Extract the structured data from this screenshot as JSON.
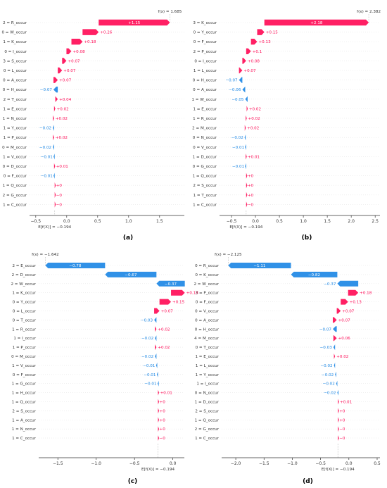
{
  "figure": {
    "colors": {
      "positive": "#ff0d57",
      "negative": "#1e88e5",
      "text": "#333333",
      "grid": "#e6e6e6"
    }
  },
  "chart_data": [
    {
      "type": "waterfall",
      "caption": "(a)",
      "fx_label": "f(x) = 1.685",
      "ex_label": "E[f(X)] = −0.194",
      "base": -0.194,
      "xlim": [
        -0.6,
        1.9
      ],
      "xticks": [
        -0.5,
        0.0,
        0.5,
        1.0,
        1.5
      ],
      "tick_labels": [
        "−0.5",
        "0.0",
        "0.5",
        "1.0",
        "1.5"
      ],
      "features": [
        {
          "label": "2 = R_occur",
          "value": 1.15
        },
        {
          "label": "0 = W_occur",
          "value": 0.26
        },
        {
          "label": "1 = K_occur",
          "value": 0.18
        },
        {
          "label": "0 = I_occur",
          "value": 0.08
        },
        {
          "label": "3 = S_occur",
          "value": 0.07
        },
        {
          "label": "0 = L_occur",
          "value": 0.07
        },
        {
          "label": "0 = A_occur",
          "value": 0.07
        },
        {
          "label": "0 = H_occur",
          "value": -0.07
        },
        {
          "label": "2 = T_occur",
          "value": 0.04
        },
        {
          "label": "1 = E_occur",
          "value": 0.02
        },
        {
          "label": "1 = N_occur",
          "value": 0.02
        },
        {
          "label": "1 = Y_occur",
          "value": -0.02
        },
        {
          "label": "1 = P_occur",
          "value": 0.02
        },
        {
          "label": "0 = M_occur",
          "value": -0.02
        },
        {
          "label": "1 = V_occur",
          "value": -0.01
        },
        {
          "label": "0 = D_occur",
          "value": 0.01
        },
        {
          "label": "0 = F_occur",
          "value": -0.01
        },
        {
          "label": "1 = Q_occur",
          "value": 0.0
        },
        {
          "label": "2 = G_occur",
          "value": -0.0
        },
        {
          "label": "1 = C_occur",
          "value": -0.0
        }
      ],
      "value_labels": [
        "+1.15",
        "+0.26",
        "+0.18",
        "+0.08",
        "+0.07",
        "+0.07",
        "+0.07",
        "−0.07",
        "+0.04",
        "+0.02",
        "+0.02",
        "−0.02",
        "+0.02",
        "−0.02",
        "−0.01",
        "+0.01",
        "−0.01",
        "+0",
        "−0",
        "−0"
      ]
    },
    {
      "type": "waterfall",
      "caption": "(b)",
      "fx_label": "f(x) = 2.382",
      "ex_label": "E[f(X)] = −0.194",
      "base": -0.194,
      "xlim": [
        -0.75,
        2.6
      ],
      "xticks": [
        -0.5,
        0.0,
        0.5,
        1.0,
        1.5,
        2.0,
        2.5
      ],
      "tick_labels": [
        "−0.5",
        "0.0",
        "0.5",
        "1.0",
        "1.5",
        "2.0",
        "2.5"
      ],
      "features": [
        {
          "label": "3 = K_occur",
          "value": 2.18
        },
        {
          "label": "0 = Y_occur",
          "value": 0.15
        },
        {
          "label": "0 = F_occur",
          "value": 0.13
        },
        {
          "label": "2 = P_occur",
          "value": 0.1
        },
        {
          "label": "0 = I_occur",
          "value": 0.08
        },
        {
          "label": "1 = L_occur",
          "value": 0.07
        },
        {
          "label": "0 = H_occur",
          "value": -0.07
        },
        {
          "label": "0 = A_occur",
          "value": -0.06
        },
        {
          "label": "1 = W_occur",
          "value": -0.05
        },
        {
          "label": "1 = E_occur",
          "value": 0.02
        },
        {
          "label": "1 = R_occur",
          "value": 0.02
        },
        {
          "label": "2 = M_occur",
          "value": 0.02
        },
        {
          "label": "0 = N_occur",
          "value": -0.02
        },
        {
          "label": "0 = V_occur",
          "value": -0.01
        },
        {
          "label": "1 = D_occur",
          "value": 0.01
        },
        {
          "label": "0 = G_occur",
          "value": -0.01
        },
        {
          "label": "1 = Q_occur",
          "value": 0.0
        },
        {
          "label": "2 = S_occur",
          "value": 0.0
        },
        {
          "label": "1 = T_occur",
          "value": 0.0
        },
        {
          "label": "1 = C_occur",
          "value": -0.0
        }
      ],
      "value_labels": [
        "+2.18",
        "+0.15",
        "+0.13",
        "+0.1",
        "+0.08",
        "+0.07",
        "−0.07",
        "−0.06",
        "−0.05",
        "+0.02",
        "+0.02",
        "+0.02",
        "−0.02",
        "−0.01",
        "+0.01",
        "−0.01",
        "+0",
        "+0",
        "+0",
        "−0"
      ]
    },
    {
      "type": "waterfall",
      "caption": "(c)",
      "fx_label": "f(x) = −1.642",
      "ex_label": "E[f(X)] = −0.194",
      "base": -0.194,
      "xlim": [
        -1.75,
        0.15
      ],
      "xticks": [
        -1.5,
        -1.0,
        -0.5,
        0.0
      ],
      "tick_labels": [
        "−1.5",
        "−1.0",
        "−0.5",
        "0.0"
      ],
      "features": [
        {
          "label": "2 = E_occur",
          "value": -0.78
        },
        {
          "label": "2 = D_occur",
          "value": -0.67
        },
        {
          "label": "2 = W_occur",
          "value": -0.37
        },
        {
          "label": "1 = K_occur",
          "value": 0.18
        },
        {
          "label": "0 = Y_occur",
          "value": 0.15
        },
        {
          "label": "0 = L_occur",
          "value": 0.07
        },
        {
          "label": "0 = T_occur",
          "value": -0.03
        },
        {
          "label": "1 = R_occur",
          "value": 0.02
        },
        {
          "label": "1 = I_occur",
          "value": -0.02
        },
        {
          "label": "1 = P_occur",
          "value": 0.02
        },
        {
          "label": "0 = M_occur",
          "value": -0.02
        },
        {
          "label": "1 = V_occur",
          "value": -0.01
        },
        {
          "label": "0 = F_occur",
          "value": -0.01
        },
        {
          "label": "1 = G_occur",
          "value": -0.01
        },
        {
          "label": "1 = H_occur",
          "value": 0.01
        },
        {
          "label": "1 = Q_occur",
          "value": 0.0
        },
        {
          "label": "2 = S_occur",
          "value": 0.0
        },
        {
          "label": "1 = A_occur",
          "value": 0.0
        },
        {
          "label": "1 = N_occur",
          "value": 0.0
        },
        {
          "label": "1 = C_occur",
          "value": -0.0
        }
      ],
      "value_labels": [
        "−0.78",
        "−0.67",
        "−0.37",
        "+0.18",
        "+0.15",
        "+0.07",
        "−0.03",
        "+0.02",
        "−0.02",
        "+0.02",
        "−0.02",
        "−0.01",
        "−0.01",
        "−0.01",
        "+0.01",
        "+0",
        "+0",
        "+0",
        "+0",
        "−0"
      ]
    },
    {
      "type": "waterfall",
      "caption": "(d)",
      "fx_label": "f(x) = −2.125",
      "ex_label": "E[f(X)] = −0.194",
      "base": -0.194,
      "xlim": [
        -2.25,
        0.55
      ],
      "xticks": [
        -2.0,
        -1.5,
        -1.0,
        -0.5,
        0.0,
        0.5
      ],
      "tick_labels": [
        "−2.0",
        "−1.5",
        "−1.0",
        "−0.5",
        "0.0",
        "0.5"
      ],
      "features": [
        {
          "label": "0 = R_occur",
          "value": -1.11
        },
        {
          "label": "0 = K_occur",
          "value": -0.82
        },
        {
          "label": "2 = W_occur",
          "value": -0.37
        },
        {
          "label": "3 = P_occur",
          "value": 0.18
        },
        {
          "label": "0 = F_occur",
          "value": 0.13
        },
        {
          "label": "0 = V_occur",
          "value": 0.07
        },
        {
          "label": "0 = A_occur",
          "value": 0.07
        },
        {
          "label": "0 = H_occur",
          "value": -0.07
        },
        {
          "label": "4 = M_occur",
          "value": 0.06
        },
        {
          "label": "0 = T_occur",
          "value": -0.03
        },
        {
          "label": "1 = E_occur",
          "value": 0.02
        },
        {
          "label": "1 = L_occur",
          "value": -0.02
        },
        {
          "label": "1 = Y_occur",
          "value": -0.02
        },
        {
          "label": "1 = I_occur",
          "value": -0.02
        },
        {
          "label": "0 = N_occur",
          "value": -0.02
        },
        {
          "label": "1 = D_occur",
          "value": 0.01
        },
        {
          "label": "2 = S_occur",
          "value": 0.0
        },
        {
          "label": "1 = Q_occur",
          "value": 0.0
        },
        {
          "label": "2 = G_occur",
          "value": -0.0
        },
        {
          "label": "1 = C_occur",
          "value": -0.0
        }
      ],
      "value_labels": [
        "−1.11",
        "−0.82",
        "−0.37",
        "+0.18",
        "+0.13",
        "+0.07",
        "+0.07",
        "−0.07",
        "+0.06",
        "−0.03",
        "+0.02",
        "−0.02",
        "−0.02",
        "−0.02",
        "−0.02",
        "+0.01",
        "+0",
        "+0",
        "−0",
        "−0"
      ]
    }
  ]
}
